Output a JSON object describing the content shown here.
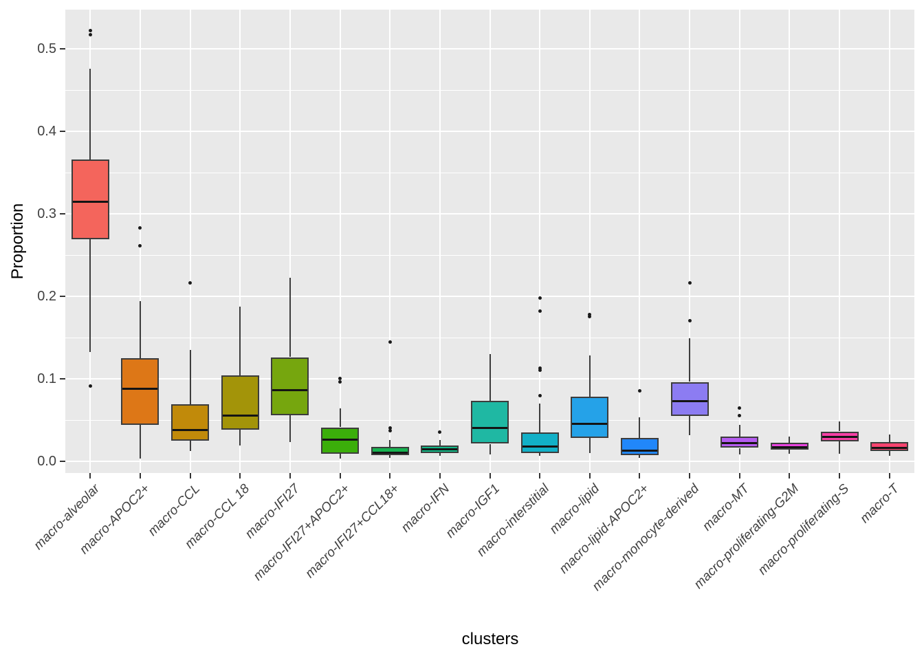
{
  "figure": {
    "panel_bg": "#E9E9E9",
    "grid_color": "#FFFFFF",
    "tick_label_color": "#404040",
    "box_border_color": "#3C3C3C",
    "median_color": "#141414",
    "outlier_color": "#1A1A1A",
    "xlabel": "clusters",
    "ylabel": "Proportion"
  },
  "chart_data": {
    "type": "boxplot",
    "title": "",
    "xlabel": "clusters",
    "ylabel": "Proportion",
    "ylim": [
      -0.015,
      0.55
    ],
    "grid": "on",
    "legend": "none",
    "yticks": [
      0.0,
      0.1,
      0.2,
      0.3,
      0.4,
      0.5
    ],
    "ytick_labels": [
      "0.0",
      "0.1",
      "0.2",
      "0.3",
      "0.4",
      "0.5"
    ],
    "minor_gridlines": [
      0.05,
      0.15,
      0.25,
      0.35,
      0.45
    ],
    "categories": [
      "macro-alveolar",
      "macro-APOC2+",
      "macro-CCL",
      "macro-CCL 18",
      "macro-IFI27",
      "macro-IFI27+APOC2+",
      "macro-IFI27+CCL18+",
      "macro-IFN",
      "macro-IGF1",
      "macro-interstitial",
      "macro-lipid",
      "macro-lipid-APOC2+",
      "macro-monocyte-derived",
      "macro-MT",
      "macro-proliferating-G2M",
      "macro-proliferating-S",
      "macro-T"
    ],
    "series": [
      {
        "name": "macro-alveolar",
        "color": "#F4655C",
        "whislo": 0.132,
        "q1": 0.269,
        "med": 0.314,
        "q3": 0.366,
        "whishi": 0.476,
        "outliers": [
          0.522,
          0.517,
          0.091
        ]
      },
      {
        "name": "macro-APOC2+",
        "color": "#DD7717",
        "whislo": 0.003,
        "q1": 0.044,
        "med": 0.088,
        "q3": 0.125,
        "whishi": 0.194,
        "outliers": [
          0.283,
          0.261
        ]
      },
      {
        "name": "macro-CCL",
        "color": "#C18A0A",
        "whislo": 0.012,
        "q1": 0.025,
        "med": 0.038,
        "q3": 0.069,
        "whishi": 0.135,
        "outliers": [
          0.216
        ]
      },
      {
        "name": "macro-CCL 18",
        "color": "#A39409",
        "whislo": 0.019,
        "q1": 0.038,
        "med": 0.055,
        "q3": 0.104,
        "whishi": 0.187,
        "outliers": []
      },
      {
        "name": "macro-IFI27",
        "color": "#76A60E",
        "whislo": 0.023,
        "q1": 0.056,
        "med": 0.086,
        "q3": 0.126,
        "whishi": 0.222,
        "outliers": []
      },
      {
        "name": "macro-IFI27+APOC2+",
        "color": "#3BAE0A",
        "whislo": 0.003,
        "q1": 0.009,
        "med": 0.026,
        "q3": 0.041,
        "whishi": 0.064,
        "outliers": [
          0.1,
          0.096
        ]
      },
      {
        "name": "macro-IFI27+CCL18+",
        "color": "#16B350",
        "whislo": 0.004,
        "q1": 0.007,
        "med": 0.01,
        "q3": 0.017,
        "whishi": 0.026,
        "outliers": [
          0.144,
          0.04,
          0.037
        ]
      },
      {
        "name": "macro-IFN",
        "color": "#12B886",
        "whislo": 0.006,
        "q1": 0.01,
        "med": 0.014,
        "q3": 0.019,
        "whishi": 0.026,
        "outliers": [
          0.035
        ]
      },
      {
        "name": "macro-IGF1",
        "color": "#1FB8A3",
        "whislo": 0.008,
        "q1": 0.021,
        "med": 0.04,
        "q3": 0.073,
        "whishi": 0.13,
        "outliers": []
      },
      {
        "name": "macro-interstitial",
        "color": "#12B0C7",
        "whislo": 0.006,
        "q1": 0.01,
        "med": 0.018,
        "q3": 0.035,
        "whishi": 0.07,
        "outliers": [
          0.198,
          0.182,
          0.113,
          0.11,
          0.079
        ]
      },
      {
        "name": "macro-lipid",
        "color": "#25A2E8",
        "whislo": 0.01,
        "q1": 0.028,
        "med": 0.045,
        "q3": 0.078,
        "whishi": 0.128,
        "outliers": [
          0.178,
          0.175
        ]
      },
      {
        "name": "macro-lipid-APOC2+",
        "color": "#2187FA",
        "whislo": 0.004,
        "q1": 0.007,
        "med": 0.013,
        "q3": 0.028,
        "whishi": 0.053,
        "outliers": [
          0.085
        ]
      },
      {
        "name": "macro-monocyte-derived",
        "color": "#8C7CF2",
        "whislo": 0.031,
        "q1": 0.055,
        "med": 0.073,
        "q3": 0.096,
        "whishi": 0.149,
        "outliers": [
          0.216,
          0.17
        ]
      },
      {
        "name": "macro-MT",
        "color": "#B55CF0",
        "whislo": 0.008,
        "q1": 0.016,
        "med": 0.022,
        "q3": 0.03,
        "whishi": 0.044,
        "outliers": [
          0.064,
          0.055
        ]
      },
      {
        "name": "macro-proliferating-G2M",
        "color": "#E843DF",
        "whislo": 0.009,
        "q1": 0.014,
        "med": 0.017,
        "q3": 0.022,
        "whishi": 0.03,
        "outliers": []
      },
      {
        "name": "macro-proliferating-S",
        "color": "#F63FA5",
        "whislo": 0.009,
        "q1": 0.024,
        "med": 0.029,
        "q3": 0.036,
        "whishi": 0.048,
        "outliers": []
      },
      {
        "name": "macro-T",
        "color": "#F8436F",
        "whislo": 0.006,
        "q1": 0.012,
        "med": 0.016,
        "q3": 0.023,
        "whishi": 0.032,
        "outliers": []
      }
    ]
  }
}
